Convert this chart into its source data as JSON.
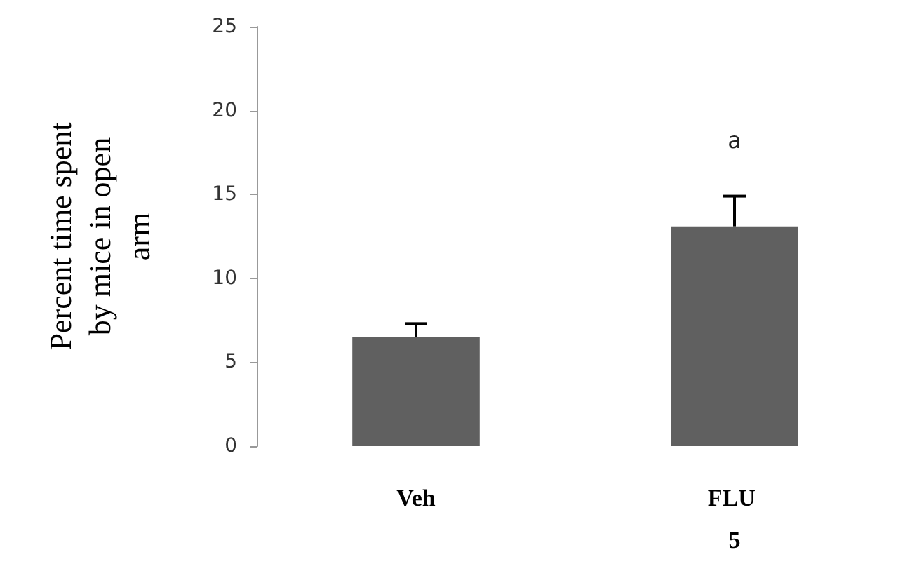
{
  "chart_data": {
    "type": "bar",
    "ylabel": "Percent time spent by mice in open arm",
    "categories": [
      "Veh",
      "FLU 5"
    ],
    "values": [
      6.5,
      13.1
    ],
    "errors": [
      [
        6.5,
        7.3
      ],
      [
        13.1,
        14.9
      ]
    ],
    "color": "#606060",
    "ylim": [
      0,
      25
    ],
    "yticks": [
      0,
      5,
      10,
      15,
      20,
      25
    ],
    "annotations": [
      "a"
    ],
    "grid": false
  }
}
